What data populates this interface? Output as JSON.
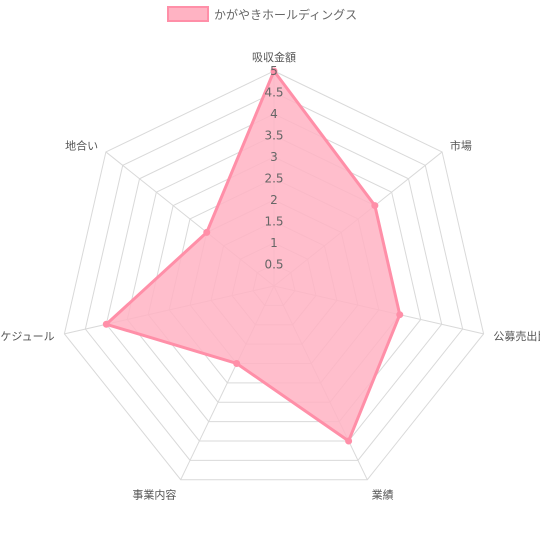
{
  "chart_data": {
    "type": "radar",
    "axes": [
      "吸収金額",
      "市場",
      "公募売出比",
      "業績",
      "事業内容",
      "スケジュール",
      "地合い"
    ],
    "r_ticks": [
      "0.5",
      "1",
      "1.5",
      "2",
      "2.5",
      "3",
      "3.5",
      "4",
      "4.5",
      "5"
    ],
    "r_range": [
      0,
      5
    ],
    "grid": true,
    "legend_position": "top",
    "series": [
      {
        "name": "かがやきホールディングス",
        "values": [
          5,
          3,
          3,
          4,
          2,
          4,
          2
        ],
        "stroke_color": "#ff8fa8",
        "fill_color": "#ffb3c3"
      }
    ]
  }
}
